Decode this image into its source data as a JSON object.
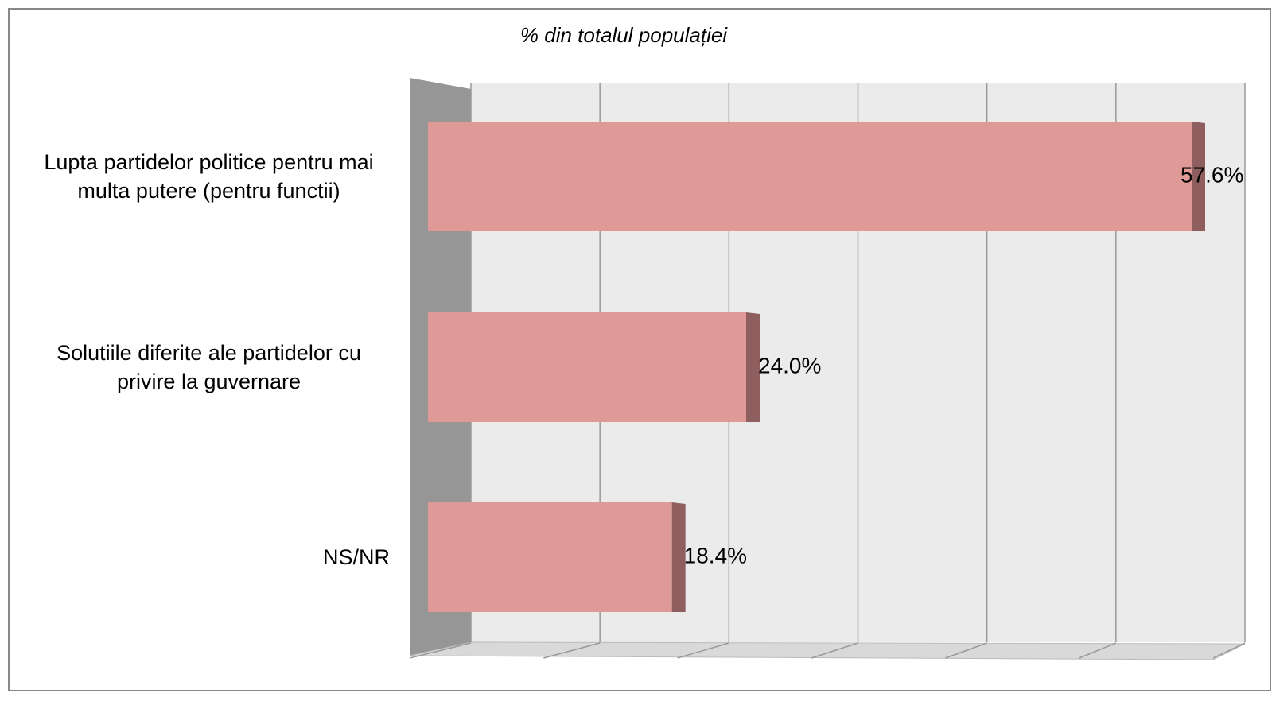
{
  "chart_data": {
    "type": "bar",
    "orientation": "horizontal",
    "title": "% din totalul populației",
    "categories": [
      "Lupta partidelor politice pentru mai multa putere (pentru functii)",
      "Solutiile diferite ale partidelor cu privire la guvernare",
      "NS/NR"
    ],
    "values": [
      57.6,
      24.0,
      18.4
    ],
    "value_labels": [
      "57.6%",
      "24.0%",
      "18.4%"
    ],
    "color": "#df9a98",
    "xlim": [
      0,
      60
    ],
    "xticks": [
      0,
      10,
      20,
      30,
      40,
      50,
      60
    ],
    "grid": true
  }
}
